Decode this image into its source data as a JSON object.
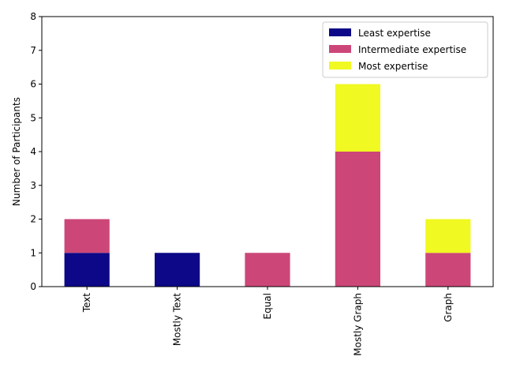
{
  "chart_data": {
    "type": "bar",
    "stacked": true,
    "title": "",
    "xlabel": "",
    "ylabel": "Number of Participants",
    "ylim": [
      0,
      8
    ],
    "yticks": [
      "0",
      "1",
      "2",
      "3",
      "4",
      "5",
      "6",
      "7",
      "8"
    ],
    "categories": [
      "Text",
      "Mostly Text",
      "Equal",
      "Mostly Graph",
      "Graph"
    ],
    "x_tick_rotation": "vertical",
    "legend_position": "top-right",
    "grid": false,
    "series": [
      {
        "name": "Least expertise",
        "values": [
          1,
          1,
          0,
          0,
          0
        ],
        "color": "#0d0887"
      },
      {
        "name": "Intermediate expertise",
        "values": [
          1,
          0,
          1,
          4,
          1
        ],
        "color": "#cc4778"
      },
      {
        "name": "Most expertise",
        "values": [
          0,
          0,
          0,
          2,
          1
        ],
        "color": "#f0f921"
      }
    ]
  }
}
